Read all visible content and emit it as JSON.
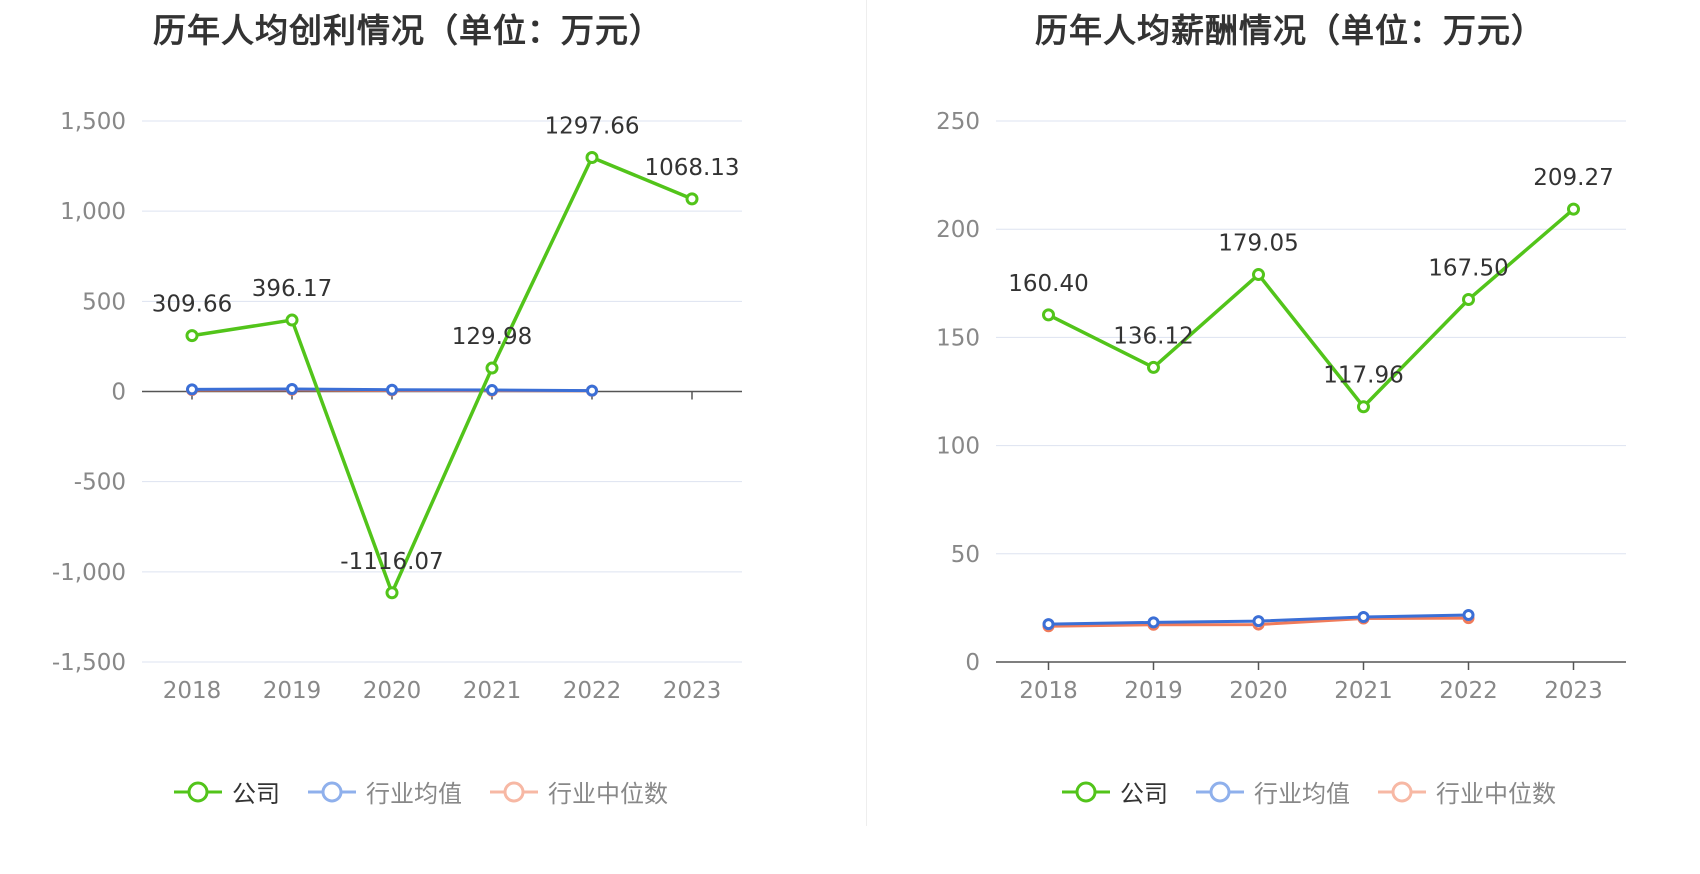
{
  "colors": {
    "company": "#52c41a",
    "industry_avg": "#3b6fd6",
    "industry_median": "#f07b5a",
    "legend_avg": "#8fb0ec",
    "legend_median": "#f7b8a4",
    "grid": "#dde3f0",
    "axis": "#555555",
    "tick_text": "#888888",
    "label_text": "#333333"
  },
  "legend": {
    "company": "公司",
    "industry_avg": "行业均值",
    "industry_median": "行业中位数"
  },
  "chart_data": [
    {
      "type": "line",
      "title": "历年人均创利情况（单位：万元）",
      "categories": [
        "2018",
        "2019",
        "2020",
        "2021",
        "2022",
        "2023"
      ],
      "ylim": [
        -1500,
        1500
      ],
      "yticks": [
        1500,
        1000,
        500,
        0,
        -500,
        -1000,
        -1500
      ],
      "ytick_labels": [
        "1,500",
        "1,000",
        "500",
        "0",
        "-500",
        "-1,000",
        "-1,500"
      ],
      "grid": true,
      "legend_position": "bottom-center",
      "series": [
        {
          "name": "公司",
          "key": "company",
          "values": [
            309.66,
            396.17,
            -1116.07,
            129.98,
            1297.66,
            1068.13
          ],
          "labels": [
            "309.66",
            "396.17",
            "-1116.07",
            "129.98",
            "1297.66",
            "1068.13"
          ]
        },
        {
          "name": "行业均值",
          "key": "industry_avg",
          "values": [
            12,
            14,
            10,
            8,
            5,
            null
          ]
        },
        {
          "name": "行业中位数",
          "key": "industry_median",
          "values": [
            8,
            10,
            6,
            5,
            4,
            null
          ]
        }
      ]
    },
    {
      "type": "line",
      "title": "历年人均薪酬情况（单位：万元）",
      "categories": [
        "2018",
        "2019",
        "2020",
        "2021",
        "2022",
        "2023"
      ],
      "ylim": [
        0,
        250
      ],
      "yticks": [
        250,
        200,
        150,
        100,
        50,
        0
      ],
      "ytick_labels": [
        "250",
        "200",
        "150",
        "100",
        "50",
        "0"
      ],
      "grid": true,
      "legend_position": "bottom-center",
      "series": [
        {
          "name": "公司",
          "key": "company",
          "values": [
            160.4,
            136.12,
            179.05,
            117.96,
            167.5,
            209.27
          ],
          "labels": [
            "160.40",
            "136.12",
            "179.05",
            "117.96",
            "167.50",
            "209.27"
          ]
        },
        {
          "name": "行业均值",
          "key": "industry_avg",
          "values": [
            17.5,
            18.3,
            18.9,
            20.8,
            21.7,
            null
          ]
        },
        {
          "name": "行业中位数",
          "key": "industry_median",
          "values": [
            16.5,
            17.2,
            17.3,
            20.1,
            20.3,
            null
          ]
        }
      ]
    }
  ]
}
